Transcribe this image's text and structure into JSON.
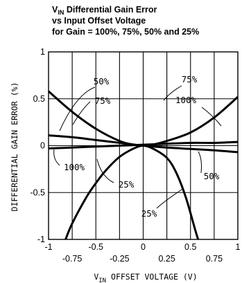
{
  "chart_data": {
    "type": "line",
    "title": {
      "line1_prefix": "V",
      "line1_sub": "IN",
      "line1_rest": " Differential Gain Error",
      "line2": "vs Input Offset Voltage",
      "line3": "for Gain = 100%, 75%, 50% and 25%"
    },
    "xlabel": {
      "prefix": "V",
      "sub": "IN",
      "rest": " OFFSET VOLTAGE (V)"
    },
    "ylabel": "DIFFERENTIAL GAIN ERROR (%)",
    "xlim": [
      -1,
      1
    ],
    "ylim": [
      -1,
      1
    ],
    "grid": true,
    "x_tick_labels_upper": [
      "-1",
      "-0.5",
      "0",
      "0.5",
      "1"
    ],
    "x_tick_labels_lower": [
      "-0.75",
      "-0.25",
      "0.25",
      "0.75"
    ],
    "y_tick_labels": [
      "1",
      "0.5",
      "0",
      "-0.5",
      "-1"
    ],
    "series": [
      {
        "name": "100%",
        "x": [
          -1,
          -0.75,
          -0.5,
          -0.25,
          0,
          0.25,
          0.5,
          0.75,
          1
        ],
        "y": [
          0.11,
          0.09,
          0.06,
          0.03,
          0.0,
          -0.02,
          -0.035,
          -0.05,
          -0.07
        ]
      },
      {
        "name": "75%",
        "x": [
          -1,
          -0.75,
          -0.5,
          -0.25,
          0,
          0.25,
          0.5,
          0.75,
          1
        ],
        "y": [
          -0.03,
          -0.02,
          -0.01,
          0.0,
          0.01,
          0.02,
          0.03,
          0.03,
          0.04
        ]
      },
      {
        "name": "50%",
        "x": [
          -1,
          -0.75,
          -0.5,
          -0.25,
          -0.1,
          0,
          0.1,
          0.25,
          0.5,
          0.75,
          1
        ],
        "y": [
          0.58,
          0.36,
          0.18,
          0.05,
          0.01,
          0.0,
          0.01,
          0.05,
          0.14,
          0.3,
          0.52
        ]
      },
      {
        "name": "25%",
        "x": [
          -0.82,
          -0.75,
          -0.6,
          -0.5,
          -0.4,
          -0.25,
          -0.1,
          0,
          0.1,
          0.25,
          0.35,
          0.45,
          0.55,
          0.58
        ],
        "y": [
          -1.0,
          -0.83,
          -0.55,
          -0.4,
          -0.27,
          -0.12,
          -0.03,
          0.0,
          -0.03,
          -0.13,
          -0.29,
          -0.55,
          -0.9,
          -1.0
        ]
      }
    ],
    "annotations": [
      {
        "text": "50%",
        "target_series": "50%"
      },
      {
        "text": "75%",
        "target_series": "75%"
      },
      {
        "text": "75%",
        "target_series": "75%"
      },
      {
        "text": "100%",
        "target_series": "100%"
      },
      {
        "text": "100%",
        "target_series": "100%"
      },
      {
        "text": "50%",
        "target_series": "50%"
      },
      {
        "text": "25%",
        "target_series": "25%"
      },
      {
        "text": "25%",
        "target_series": "25%"
      }
    ]
  }
}
